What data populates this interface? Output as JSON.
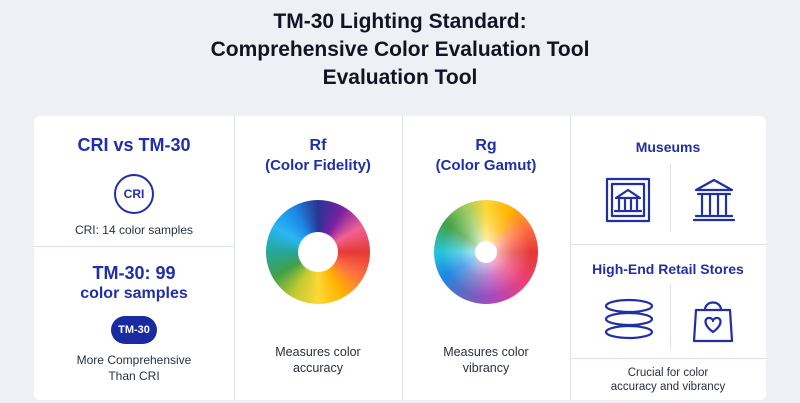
{
  "title": {
    "line1": "TM-30 Lighting Standard:",
    "line2": "Comprehensive Color Evaluation Tool",
    "line3": "Evaluation Tool"
  },
  "cri": {
    "heading": "CRI vs TM-30",
    "badge": "CRI",
    "caption": "CRI: 14 color samples"
  },
  "tm30": {
    "heading_line1": "TM-30: 99",
    "heading_line2": "color samples",
    "badge": "TM-30",
    "caption_line1": "More Comprehensive",
    "caption_line2": "Than CRI"
  },
  "rf": {
    "heading_line1": "Rf",
    "heading_line2": "(Color Fidelity)",
    "caption_line1": "Measures color",
    "caption_line2": "accuracy"
  },
  "rg": {
    "heading_line1": "Rg",
    "heading_line2": "(Color Gamut)",
    "caption_line1": "Measures color",
    "caption_line2": "vibrancy"
  },
  "museums": {
    "heading": "Museums",
    "icons": [
      "museum-frame-icon",
      "museum-building-icon"
    ]
  },
  "retail": {
    "heading": "High-End Retail Stores",
    "icons": [
      "fabric-stack-icon",
      "shopping-bag-heart-icon"
    ],
    "caption_line1": "Crucial for color",
    "caption_line2": "accuracy and vibrancy"
  },
  "colors": {
    "accent": "#1f2fa6",
    "badge_fill": "#1a2aa0"
  }
}
